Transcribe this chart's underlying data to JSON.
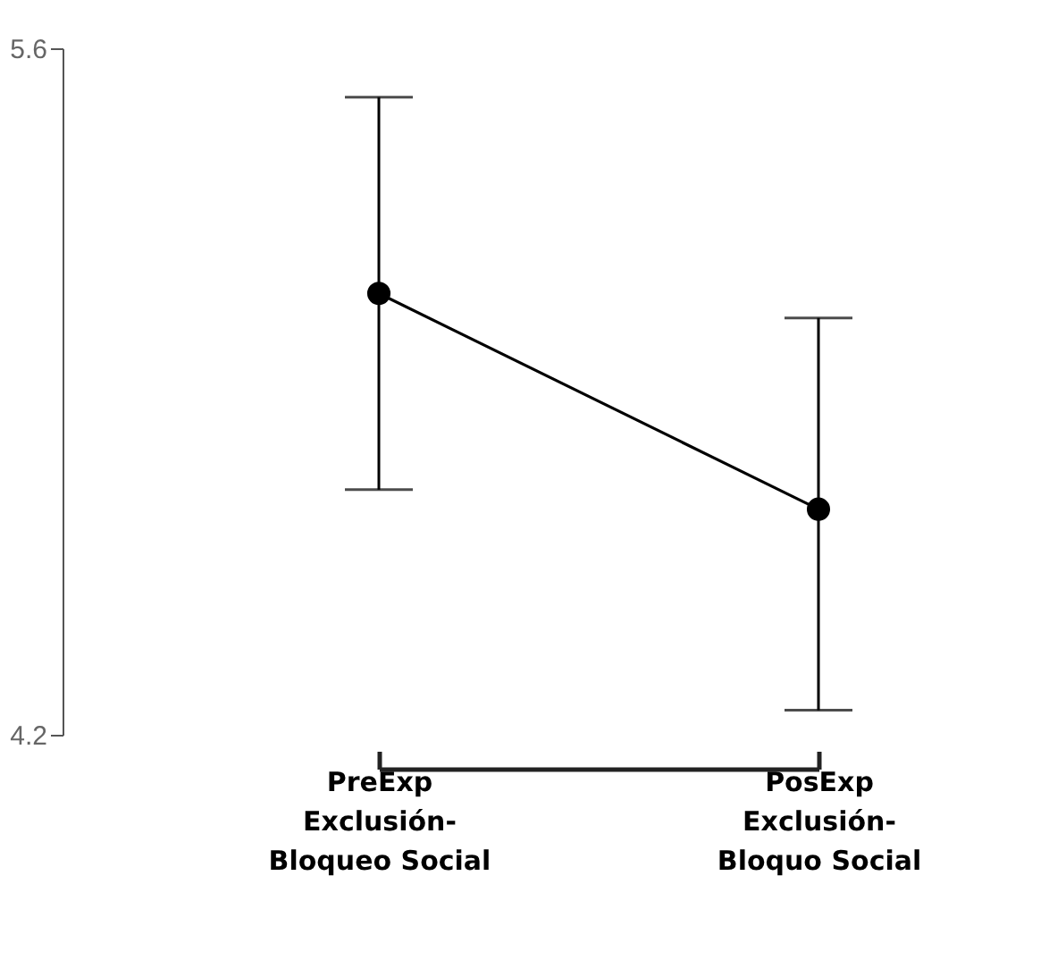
{
  "chart_data": {
    "type": "line",
    "categories": [
      "PreExp Exclusión-Bloqueo Social",
      "PosExp Exclusión-Bloquo Social"
    ],
    "series": [
      {
        "color": "#000000",
        "values": [
          5.1,
          4.66
        ],
        "errors": [
          [
            4.7,
            5.5
          ],
          [
            4.25,
            5.05
          ]
        ]
      }
    ],
    "ylim": [
      4.2,
      5.6
    ],
    "yticks": [
      4.2,
      5.6
    ],
    "grid": false,
    "legend": false,
    "marker": "circle",
    "line_style": "solid"
  }
}
